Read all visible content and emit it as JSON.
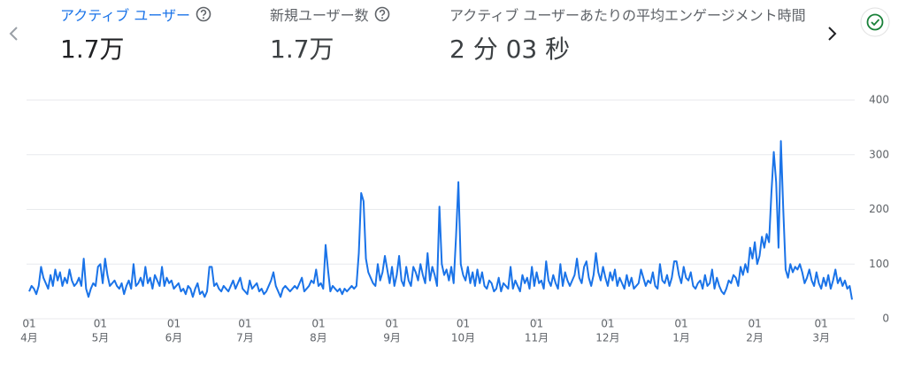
{
  "tabs": [
    {
      "label": "アクティブ ユーザー",
      "value": "1.7万"
    },
    {
      "label": "新規ユーザー数",
      "value": "1.7万"
    },
    {
      "label": "アクティブ ユーザーあたりの平均エンゲージメント時間",
      "value": "2 分 03 秒"
    }
  ],
  "chart_data": {
    "type": "line",
    "color": "#1a73e8",
    "grid": true,
    "ylim": [
      0,
      400
    ],
    "yticks": [
      0,
      100,
      200,
      300,
      400
    ],
    "xlim": [
      0,
      347
    ],
    "xticks": [
      {
        "value": 0,
        "label": "01",
        "month": "4月"
      },
      {
        "value": 30,
        "label": "01",
        "month": "5月"
      },
      {
        "value": 61,
        "label": "01",
        "month": "6月"
      },
      {
        "value": 91,
        "label": "01",
        "month": "7月"
      },
      {
        "value": 122,
        "label": "01",
        "month": "8月"
      },
      {
        "value": 153,
        "label": "01",
        "month": "9月"
      },
      {
        "value": 183,
        "label": "01",
        "month": "10月"
      },
      {
        "value": 214,
        "label": "01",
        "month": "11月"
      },
      {
        "value": 244,
        "label": "01",
        "month": "12月"
      },
      {
        "value": 275,
        "label": "01",
        "month": "1月"
      },
      {
        "value": 306,
        "label": "01",
        "month": "2月"
      },
      {
        "value": 334,
        "label": "01",
        "month": "3月"
      }
    ],
    "values": [
      50,
      60,
      55,
      45,
      60,
      95,
      75,
      65,
      55,
      80,
      60,
      90,
      70,
      85,
      60,
      75,
      65,
      90,
      70,
      60,
      65,
      75,
      60,
      110,
      55,
      40,
      55,
      65,
      60,
      95,
      100,
      65,
      110,
      80,
      60,
      65,
      70,
      60,
      55,
      65,
      45,
      60,
      70,
      55,
      100,
      60,
      65,
      75,
      60,
      95,
      65,
      75,
      55,
      80,
      70,
      60,
      95,
      60,
      75,
      65,
      70,
      55,
      60,
      65,
      50,
      55,
      45,
      60,
      55,
      40,
      55,
      65,
      45,
      50,
      40,
      50,
      95,
      95,
      60,
      65,
      55,
      50,
      60,
      55,
      50,
      60,
      70,
      55,
      65,
      75,
      55,
      50,
      45,
      70,
      55,
      60,
      65,
      50,
      55,
      45,
      50,
      60,
      70,
      85,
      60,
      50,
      40,
      55,
      60,
      55,
      50,
      55,
      60,
      55,
      65,
      75,
      50,
      55,
      60,
      70,
      65,
      90,
      60,
      65,
      55,
      135,
      90,
      50,
      60,
      55,
      50,
      55,
      45,
      55,
      50,
      55,
      60,
      55,
      60,
      120,
      230,
      215,
      110,
      85,
      75,
      65,
      60,
      100,
      70,
      85,
      115,
      90,
      65,
      95,
      60,
      80,
      115,
      70,
      60,
      95,
      70,
      60,
      95,
      85,
      70,
      100,
      80,
      65,
      120,
      70,
      95,
      80,
      60,
      205,
      100,
      80,
      90,
      70,
      95,
      65,
      150,
      250,
      100,
      80,
      70,
      95,
      65,
      85,
      60,
      90,
      65,
      85,
      60,
      55,
      70,
      65,
      50,
      55,
      75,
      50,
      65,
      60,
      55,
      95,
      55,
      70,
      60,
      50,
      80,
      65,
      75,
      55,
      95,
      60,
      85,
      65,
      70,
      55,
      105,
      70,
      60,
      80,
      65,
      55,
      100,
      60,
      85,
      70,
      60,
      70,
      80,
      110,
      75,
      65,
      95,
      105,
      75,
      60,
      80,
      120,
      85,
      70,
      95,
      75,
      60,
      85,
      70,
      90,
      60,
      75,
      65,
      55,
      80,
      60,
      75,
      55,
      60,
      65,
      90,
      75,
      60,
      70,
      65,
      85,
      60,
      55,
      100,
      70,
      65,
      80,
      60,
      75,
      105,
      105,
      80,
      65,
      95,
      75,
      70,
      85,
      60,
      55,
      65,
      70,
      55,
      80,
      60,
      65,
      90,
      55,
      75,
      60,
      50,
      45,
      55,
      70,
      65,
      80,
      75,
      60,
      95,
      80,
      100,
      85,
      130,
      110,
      140,
      100,
      115,
      150,
      130,
      155,
      140,
      230,
      305,
      250,
      130,
      325,
      200,
      90,
      75,
      100,
      85,
      95,
      90,
      100,
      85,
      65,
      75,
      90,
      70,
      60,
      85,
      65,
      55,
      75,
      60,
      80,
      55,
      70,
      90,
      65,
      75,
      60,
      70,
      55,
      60,
      35
    ]
  }
}
